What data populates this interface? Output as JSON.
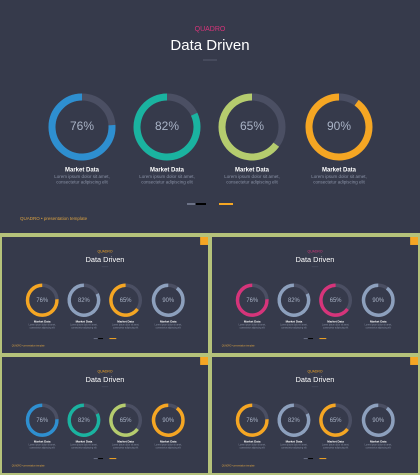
{
  "chart_data": [
    {
      "type": "donut",
      "subtitle": "QUADRO",
      "subtitle_color": "#d6347a",
      "title": "Data Driven",
      "categories": [
        "Market Data",
        "Market Data",
        "Market Data",
        "Market Data"
      ],
      "descriptions": [
        [
          "Lorem ipsum dolor sit amet,",
          "consectetur adipiscing elit"
        ],
        [
          "Lorem ipsum dolor sit amet,",
          "consectetur adipiscing elit"
        ],
        [
          "Lorem ipsum dolor sit amet,",
          "consectetur adipiscing elit"
        ],
        [
          "Lorem ipsum dolor sit amet,",
          "consectetur adipiscing elit"
        ]
      ],
      "values": [
        76,
        82,
        65,
        90
      ],
      "value_labels": [
        "76%",
        "82%",
        "65%",
        "90%"
      ],
      "colors": [
        "#2e8fd0",
        "#1ab3a0",
        "#b5cc6e",
        "#f5a623"
      ],
      "footer": "QUADRO • presentation template"
    },
    {
      "type": "donut",
      "subtitle": "QUADRO",
      "subtitle_color": "#f5a623",
      "title": "Data Driven",
      "categories": [
        "Market Data",
        "Market Data",
        "Market Data",
        "Market Data"
      ],
      "descriptions": [
        [
          "Lorem ipsum dolor sit amet,",
          "consectetur adipiscing elit"
        ],
        [
          "Lorem ipsum dolor sit amet,",
          "consectetur adipiscing elit"
        ],
        [
          "Lorem ipsum dolor sit amet,",
          "consectetur adipiscing elit"
        ],
        [
          "Lorem ipsum dolor sit amet,",
          "consectetur adipiscing elit"
        ]
      ],
      "values": [
        76,
        82,
        65,
        90
      ],
      "value_labels": [
        "76%",
        "82%",
        "65%",
        "90%"
      ],
      "colors": [
        "#f5a623",
        "#8da0bd",
        "#f5a623",
        "#8da0bd"
      ],
      "footer": "QUADRO • presentation template"
    },
    {
      "type": "donut",
      "subtitle": "QUADRO",
      "subtitle_color": "#d6347a",
      "title": "Data Driven",
      "categories": [
        "Market Data",
        "Market Data",
        "Market Data",
        "Market Data"
      ],
      "descriptions": [
        [
          "Lorem ipsum dolor sit amet,",
          "consectetur adipiscing elit"
        ],
        [
          "Lorem ipsum dolor sit amet,",
          "consectetur adipiscing elit"
        ],
        [
          "Lorem ipsum dolor sit amet,",
          "consectetur adipiscing elit"
        ],
        [
          "Lorem ipsum dolor sit amet,",
          "consectetur adipiscing elit"
        ]
      ],
      "values": [
        76,
        82,
        65,
        90
      ],
      "value_labels": [
        "76%",
        "82%",
        "65%",
        "90%"
      ],
      "colors": [
        "#d6347a",
        "#8da0bd",
        "#d6347a",
        "#8da0bd"
      ],
      "footer": "QUADRO • presentation template"
    },
    {
      "type": "donut",
      "subtitle": "QUADRO",
      "subtitle_color": "#f5a623",
      "title": "Data Driven",
      "categories": [
        "Market Data",
        "Market Data",
        "Market Data",
        "Market Data"
      ],
      "descriptions": [
        [
          "Lorem ipsum dolor sit amet,",
          "consectetur adipiscing elit"
        ],
        [
          "Lorem ipsum dolor sit amet,",
          "consectetur adipiscing elit"
        ],
        [
          "Lorem ipsum dolor sit amet,",
          "consectetur adipiscing elit"
        ],
        [
          "Lorem ipsum dolor sit amet,",
          "consectetur adipiscing elit"
        ]
      ],
      "values": [
        76,
        82,
        65,
        90
      ],
      "value_labels": [
        "76%",
        "82%",
        "65%",
        "90%"
      ],
      "colors": [
        "#2e8fd0",
        "#1ab3a0",
        "#b5cc6e",
        "#f5a623"
      ],
      "footer": "QUADRO • presentation template"
    },
    {
      "type": "donut",
      "subtitle": "QUADRO",
      "subtitle_color": "#f5a623",
      "title": "Data Driven",
      "categories": [
        "Market Data",
        "Market Data",
        "Market Data",
        "Market Data"
      ],
      "descriptions": [
        [
          "Lorem ipsum dolor sit amet,",
          "consectetur adipiscing elit"
        ],
        [
          "Lorem ipsum dolor sit amet,",
          "consectetur adipiscing elit"
        ],
        [
          "Lorem ipsum dolor sit amet,",
          "consectetur adipiscing elit"
        ],
        [
          "Lorem ipsum dolor sit amet,",
          "consectetur adipiscing elit"
        ]
      ],
      "values": [
        76,
        82,
        65,
        90
      ],
      "value_labels": [
        "76%",
        "82%",
        "65%",
        "90%"
      ],
      "colors": [
        "#f5a623",
        "#8da0bd",
        "#f5a623",
        "#8da0bd"
      ],
      "footer": "QUADRO • presentation template"
    }
  ]
}
